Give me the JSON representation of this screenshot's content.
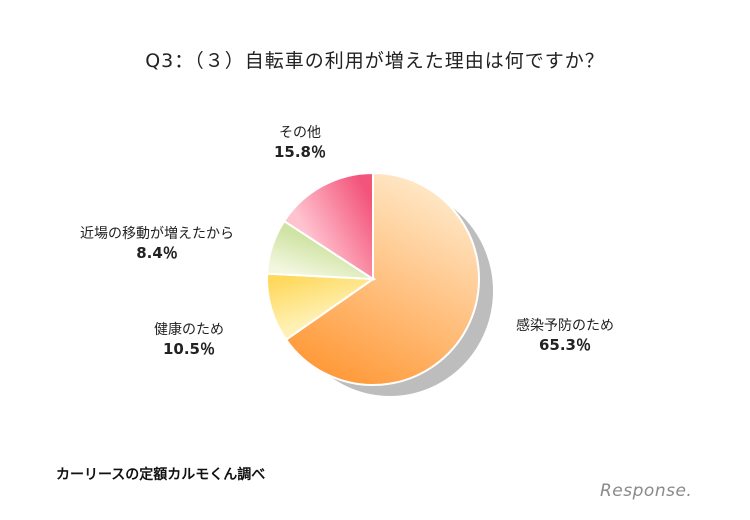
{
  "chart_data": {
    "type": "pie",
    "title": "Q3：（３）自転車の利用が増えた理由は何ですか？",
    "slices": [
      {
        "label": "感染予防のため",
        "value": 65.3,
        "value_label": "65.3％",
        "color_light": "#ffe6c4",
        "color_dark": "#ff9a3a"
      },
      {
        "label": "健康のため",
        "value": 10.5,
        "value_label": "10.5％",
        "color_light": "#fff1b5",
        "color_dark": "#ffd95e"
      },
      {
        "label": "近場の移動が増えたから",
        "value": 8.4,
        "value_label": "8.4％",
        "color_light": "#f3f7e0",
        "color_dark": "#cfe3a3"
      },
      {
        "label": "その他",
        "value": 15.8,
        "value_label": "15.8％",
        "color_light": "#ffc2cf",
        "color_dark": "#f3547a"
      }
    ]
  },
  "source": "カーリースの定額カルモくん調べ",
  "logo": "Response."
}
